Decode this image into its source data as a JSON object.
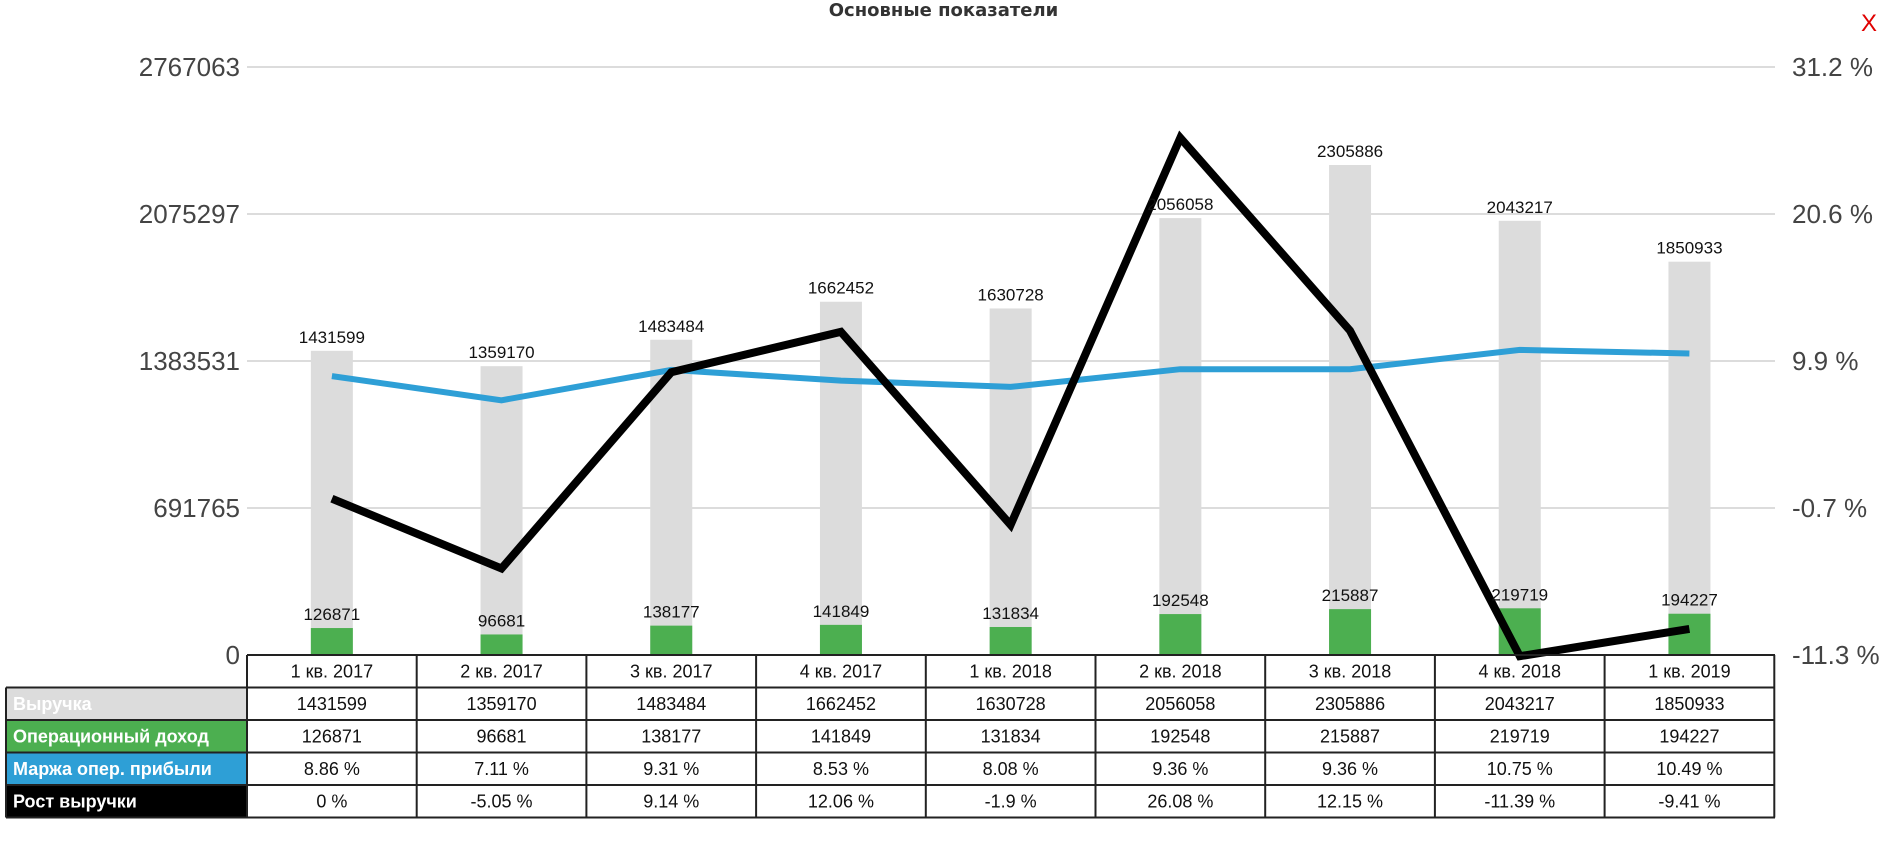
{
  "close_label": "X",
  "chart_data": {
    "type": "bar",
    "title": "Основные показатели",
    "categories": [
      "1 кв. 2017",
      "2 кв. 2017",
      "3 кв. 2017",
      "4 кв. 2017",
      "1 кв. 2018",
      "2 кв. 2018",
      "3 кв. 2018",
      "4 кв. 2018",
      "1 кв. 2019"
    ],
    "y_left": {
      "ticks": [
        "2767063",
        "2075297",
        "1383531",
        "691765",
        "0"
      ],
      "min": 0,
      "max": 2767063
    },
    "y_right": {
      "ticks": [
        "31.2 %",
        "20.6 %",
        "9.9 %",
        "-0.7 %",
        "-11.3 %"
      ],
      "min": -11.3,
      "max": 31.2
    },
    "grid": true,
    "series": [
      {
        "name": "Выручка",
        "type": "bar",
        "axis": "left",
        "color": "#dcdcdc",
        "label_color": "#ffffff",
        "values": [
          1431599,
          1359170,
          1483484,
          1662452,
          1630728,
          2056058,
          2305886,
          2043217,
          1850933
        ],
        "table": [
          "1431599",
          "1359170",
          "1483484",
          "1662452",
          "1630728",
          "2056058",
          "2305886",
          "2043217",
          "1850933"
        ]
      },
      {
        "name": "Операционный доход",
        "type": "bar",
        "axis": "left",
        "color": "#4caf50",
        "label_color": "#ffffff",
        "values": [
          126871,
          96681,
          138177,
          141849,
          131834,
          192548,
          215887,
          219719,
          194227
        ],
        "table": [
          "126871",
          "96681",
          "138177",
          "141849",
          "131834",
          "192548",
          "215887",
          "219719",
          "194227"
        ]
      },
      {
        "name": "Маржа опер. прибыли",
        "type": "line",
        "axis": "right",
        "color": "#2e9fd6",
        "label_color": "#ffffff",
        "values": [
          8.86,
          7.11,
          9.31,
          8.53,
          8.08,
          9.36,
          9.36,
          10.75,
          10.49
        ],
        "table": [
          "8.86 %",
          "7.11 %",
          "9.31 %",
          "8.53 %",
          "8.08 %",
          "9.36 %",
          "9.36 %",
          "10.75 %",
          "10.49 %"
        ]
      },
      {
        "name": "Рост выручки",
        "type": "line",
        "axis": "right",
        "color": "#000000",
        "label_color": "#ffffff",
        "values": [
          0,
          -5.05,
          9.14,
          12.06,
          -1.9,
          26.08,
          12.15,
          -11.39,
          -9.41
        ],
        "table": [
          "0 %",
          "-5.05 %",
          "9.14 %",
          "12.06 %",
          "-1.9 %",
          "26.08 %",
          "12.15 %",
          "-11.39 %",
          "-9.41 %"
        ]
      }
    ]
  }
}
